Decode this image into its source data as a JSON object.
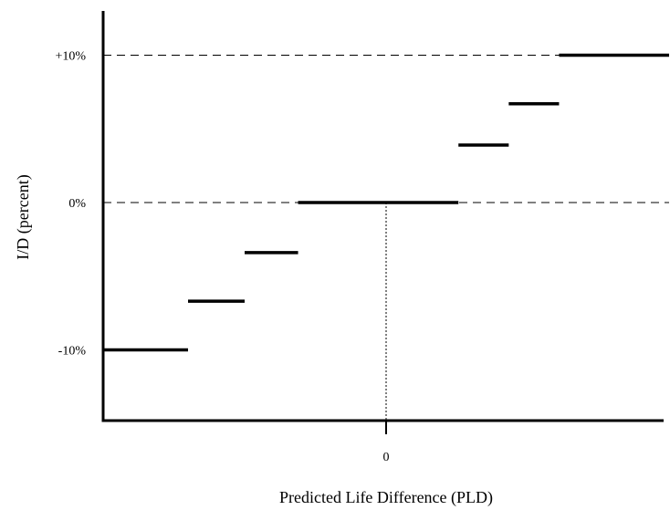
{
  "chart_data": {
    "type": "line",
    "title": "",
    "xlabel": "Predicted Life Difference (PLD)",
    "ylabel": "I/D (percent)",
    "x_ticks": [
      {
        "value": 0,
        "label": "0"
      }
    ],
    "y_ticks": [
      {
        "value": 10,
        "label": "+10%"
      },
      {
        "value": 0,
        "label": "0%"
      },
      {
        "value": -10,
        "label": "-10%"
      }
    ],
    "xlim": [
      -9,
      9
    ],
    "ylim": [
      -14.8,
      13
    ],
    "grid": false,
    "legend": "none",
    "step_segments": [
      {
        "x_start": -9.0,
        "x_end": -6.3,
        "y": -10.0
      },
      {
        "x_start": -6.3,
        "x_end": -4.5,
        "y": -6.7
      },
      {
        "x_start": -4.5,
        "x_end": -2.8,
        "y": -3.4
      },
      {
        "x_start": -2.8,
        "x_end": 2.3,
        "y": 0.0
      },
      {
        "x_start": 2.3,
        "x_end": 3.9,
        "y": 3.9
      },
      {
        "x_start": 3.9,
        "x_end": 5.5,
        "y": 6.7
      },
      {
        "x_start": 5.5,
        "x_end": 9.3,
        "y": 10.0
      }
    ],
    "reference_lines": [
      {
        "orientation": "horizontal",
        "y": 10,
        "style": "dashed"
      },
      {
        "orientation": "horizontal",
        "y": 0,
        "style": "dashed"
      },
      {
        "orientation": "vertical",
        "x": 0,
        "style": "dotted"
      }
    ]
  }
}
